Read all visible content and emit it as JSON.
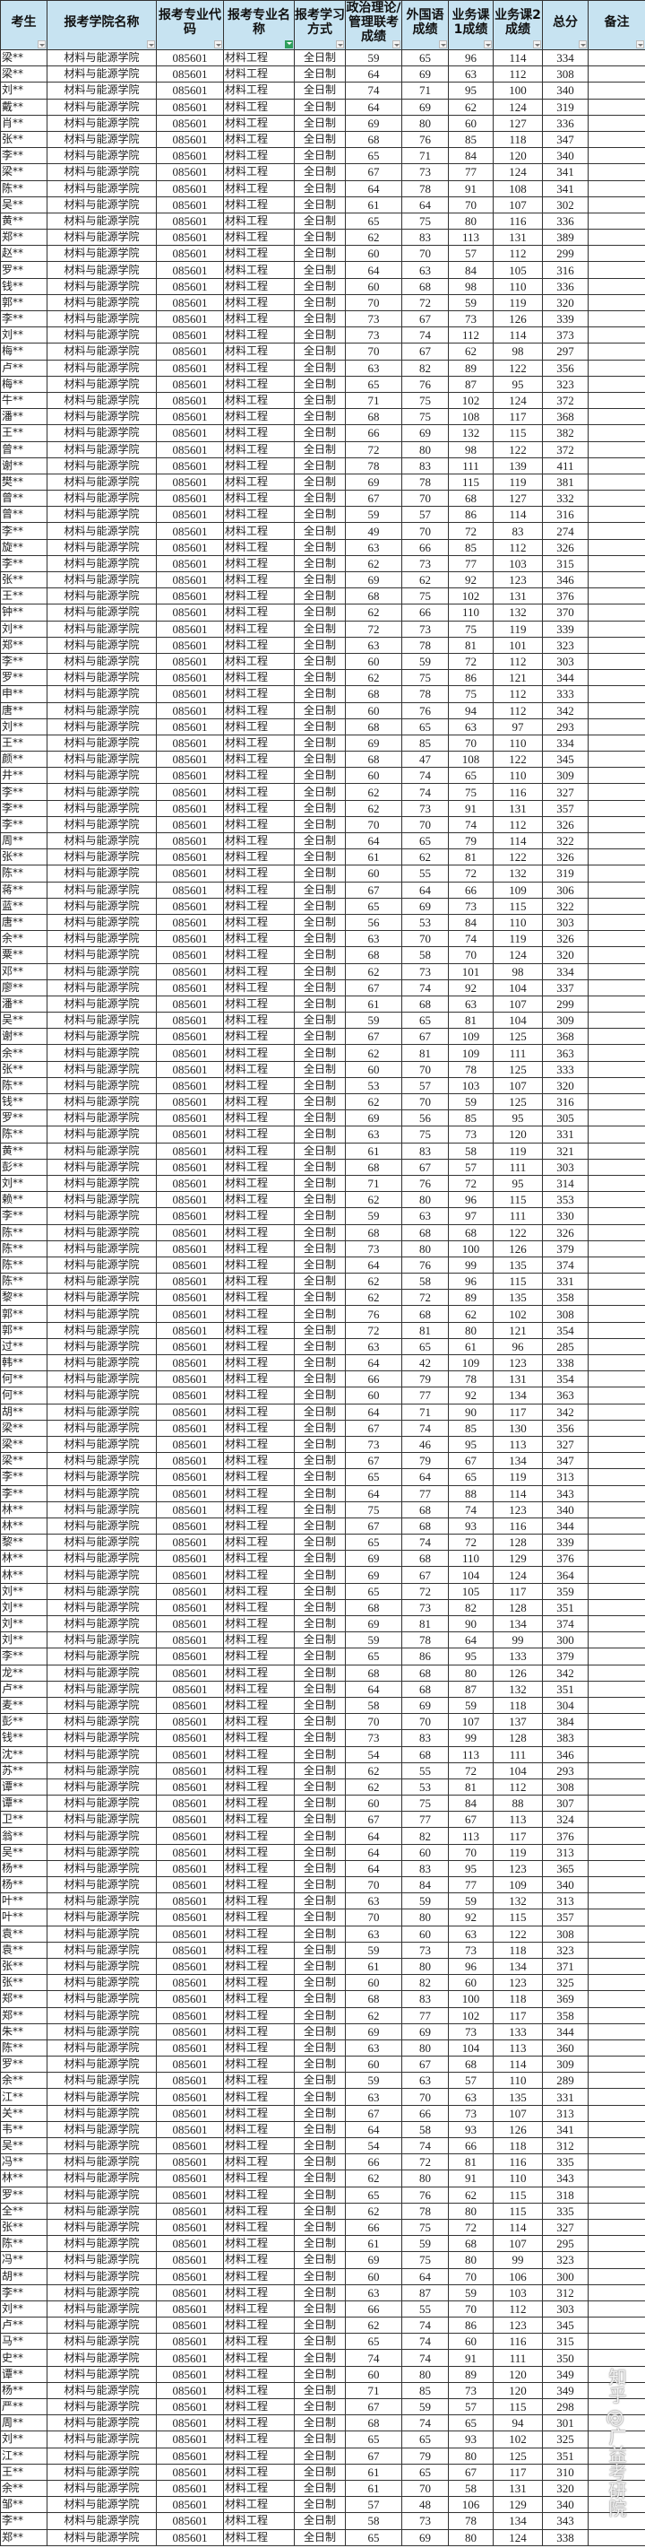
{
  "table": {
    "headers": [
      "考生",
      "报考学院名称",
      "报考专业代码",
      "报考专业名称",
      "报考学习方式",
      "政治理论/管理联考成绩",
      "外国语成绩",
      "业务课1成绩",
      "业务课2成绩",
      "总分",
      "备注"
    ],
    "filter_icons": {
      "default": "dropdown-arrow-icon",
      "active": "filter-icon",
      "active_column": 3
    },
    "common": {
      "school": "材料与能源学院",
      "code": "085601",
      "major": "材料工程",
      "mode": "全日制",
      "remark": ""
    },
    "rows": [
      [
        "梁**",
        59,
        65,
        96,
        114,
        334
      ],
      [
        "梁**",
        64,
        69,
        63,
        112,
        308
      ],
      [
        "刘**",
        74,
        71,
        95,
        100,
        340
      ],
      [
        "戴**",
        64,
        69,
        62,
        124,
        319
      ],
      [
        "肖**",
        69,
        80,
        60,
        127,
        336
      ],
      [
        "张**",
        68,
        76,
        85,
        118,
        347
      ],
      [
        "李**",
        65,
        71,
        84,
        120,
        340
      ],
      [
        "梁**",
        67,
        73,
        77,
        124,
        341
      ],
      [
        "陈**",
        64,
        78,
        91,
        108,
        341
      ],
      [
        "吴**",
        61,
        64,
        70,
        107,
        302
      ],
      [
        "黄**",
        65,
        75,
        80,
        116,
        336
      ],
      [
        "郑**",
        62,
        83,
        113,
        131,
        389
      ],
      [
        "赵**",
        60,
        70,
        57,
        112,
        299
      ],
      [
        "罗**",
        64,
        63,
        84,
        105,
        316
      ],
      [
        "钱**",
        60,
        68,
        98,
        110,
        336
      ],
      [
        "郭**",
        70,
        72,
        59,
        119,
        320
      ],
      [
        "李**",
        73,
        67,
        73,
        126,
        339
      ],
      [
        "刘**",
        73,
        74,
        112,
        114,
        373
      ],
      [
        "梅**",
        70,
        67,
        62,
        98,
        297
      ],
      [
        "卢**",
        63,
        82,
        89,
        122,
        356
      ],
      [
        "梅**",
        65,
        76,
        87,
        95,
        323
      ],
      [
        "牛**",
        71,
        75,
        102,
        124,
        372
      ],
      [
        "潘**",
        68,
        75,
        108,
        117,
        368
      ],
      [
        "王**",
        66,
        69,
        132,
        115,
        382
      ],
      [
        "曾**",
        72,
        80,
        98,
        122,
        372
      ],
      [
        "谢**",
        78,
        83,
        111,
        139,
        411
      ],
      [
        "樊**",
        69,
        78,
        115,
        119,
        381
      ],
      [
        "曾**",
        67,
        70,
        68,
        127,
        332
      ],
      [
        "曾**",
        59,
        57,
        86,
        114,
        316
      ],
      [
        "李**",
        49,
        70,
        72,
        83,
        274
      ],
      [
        "旋**",
        63,
        66,
        85,
        112,
        326
      ],
      [
        "李**",
        62,
        73,
        77,
        103,
        315
      ],
      [
        "张**",
        69,
        62,
        92,
        123,
        346
      ],
      [
        "王**",
        68,
        75,
        102,
        131,
        376
      ],
      [
        "钟**",
        62,
        66,
        110,
        132,
        370
      ],
      [
        "刘**",
        72,
        73,
        75,
        119,
        339
      ],
      [
        "郑**",
        63,
        78,
        81,
        101,
        323
      ],
      [
        "李**",
        60,
        59,
        72,
        112,
        303
      ],
      [
        "罗**",
        62,
        75,
        86,
        121,
        344
      ],
      [
        "申**",
        68,
        78,
        75,
        112,
        333
      ],
      [
        "唐**",
        60,
        76,
        94,
        112,
        342
      ],
      [
        "刘**",
        68,
        65,
        63,
        97,
        293
      ],
      [
        "王**",
        69,
        85,
        70,
        110,
        334
      ],
      [
        "颜**",
        68,
        47,
        108,
        122,
        345
      ],
      [
        "井**",
        60,
        74,
        65,
        110,
        309
      ],
      [
        "李**",
        62,
        74,
        75,
        116,
        327
      ],
      [
        "李**",
        62,
        73,
        91,
        131,
        357
      ],
      [
        "李**",
        70,
        70,
        74,
        112,
        326
      ],
      [
        "周**",
        64,
        65,
        79,
        114,
        322
      ],
      [
        "张**",
        61,
        62,
        81,
        122,
        326
      ],
      [
        "陈**",
        60,
        55,
        72,
        132,
        319
      ],
      [
        "蒋**",
        67,
        64,
        66,
        109,
        306
      ],
      [
        "蓝**",
        65,
        69,
        73,
        115,
        322
      ],
      [
        "唐**",
        56,
        53,
        84,
        110,
        303
      ],
      [
        "余**",
        63,
        70,
        74,
        119,
        326
      ],
      [
        "粟**",
        68,
        58,
        70,
        124,
        320
      ],
      [
        "邓**",
        62,
        73,
        101,
        98,
        334
      ],
      [
        "廖**",
        67,
        74,
        92,
        104,
        337
      ],
      [
        "潘**",
        61,
        68,
        63,
        107,
        299
      ],
      [
        "吴**",
        59,
        65,
        81,
        104,
        309
      ],
      [
        "谢**",
        67,
        67,
        109,
        125,
        368
      ],
      [
        "余**",
        62,
        81,
        109,
        111,
        363
      ],
      [
        "张**",
        60,
        70,
        78,
        125,
        333
      ],
      [
        "陈**",
        53,
        57,
        103,
        107,
        320
      ],
      [
        "钱**",
        62,
        70,
        59,
        125,
        316
      ],
      [
        "罗**",
        69,
        56,
        85,
        95,
        305
      ],
      [
        "陈**",
        63,
        75,
        73,
        120,
        331
      ],
      [
        "黄**",
        61,
        83,
        58,
        119,
        321
      ],
      [
        "彭**",
        68,
        67,
        57,
        111,
        303
      ],
      [
        "刘**",
        71,
        76,
        72,
        95,
        314
      ],
      [
        "赖**",
        62,
        80,
        96,
        115,
        353
      ],
      [
        "李**",
        59,
        63,
        97,
        111,
        330
      ],
      [
        "陈**",
        68,
        68,
        68,
        122,
        326
      ],
      [
        "陈**",
        73,
        80,
        100,
        126,
        379
      ],
      [
        "陈**",
        64,
        76,
        99,
        135,
        374
      ],
      [
        "陈**",
        62,
        58,
        96,
        115,
        331
      ],
      [
        "黎**",
        62,
        72,
        89,
        135,
        358
      ],
      [
        "郭**",
        76,
        68,
        62,
        102,
        308
      ],
      [
        "郭**",
        72,
        81,
        80,
        121,
        354
      ],
      [
        "过**",
        63,
        65,
        61,
        96,
        285
      ],
      [
        "韩**",
        64,
        42,
        109,
        123,
        338
      ],
      [
        "何**",
        66,
        79,
        78,
        131,
        354
      ],
      [
        "何**",
        60,
        77,
        92,
        134,
        363
      ],
      [
        "胡**",
        64,
        71,
        90,
        117,
        342
      ],
      [
        "梁**",
        67,
        74,
        85,
        130,
        356
      ],
      [
        "梁**",
        73,
        46,
        95,
        113,
        327
      ],
      [
        "梁**",
        67,
        79,
        67,
        134,
        347
      ],
      [
        "李**",
        65,
        64,
        65,
        119,
        313
      ],
      [
        "李**",
        64,
        77,
        88,
        114,
        343
      ],
      [
        "林**",
        75,
        68,
        74,
        123,
        340
      ],
      [
        "林**",
        67,
        68,
        93,
        116,
        344
      ],
      [
        "黎**",
        65,
        74,
        72,
        128,
        339
      ],
      [
        "林**",
        69,
        68,
        110,
        129,
        376
      ],
      [
        "林**",
        69,
        67,
        104,
        124,
        364
      ],
      [
        "刘**",
        65,
        72,
        105,
        117,
        359
      ],
      [
        "刘**",
        68,
        73,
        82,
        128,
        351
      ],
      [
        "刘**",
        69,
        81,
        90,
        134,
        374
      ],
      [
        "刘**",
        59,
        78,
        64,
        99,
        300
      ],
      [
        "李**",
        65,
        86,
        95,
        133,
        379
      ],
      [
        "龙**",
        68,
        68,
        80,
        126,
        342
      ],
      [
        "卢**",
        64,
        68,
        87,
        132,
        351
      ],
      [
        "麦**",
        58,
        69,
        59,
        118,
        304
      ],
      [
        "彭**",
        70,
        70,
        107,
        137,
        384
      ],
      [
        "钱**",
        73,
        83,
        99,
        128,
        383
      ],
      [
        "沈**",
        54,
        68,
        113,
        111,
        346
      ],
      [
        "苏**",
        62,
        55,
        72,
        104,
        293
      ],
      [
        "谭**",
        62,
        53,
        81,
        112,
        308
      ],
      [
        "谭**",
        60,
        75,
        84,
        88,
        307
      ],
      [
        "卫**",
        67,
        77,
        67,
        113,
        324
      ],
      [
        "翁**",
        64,
        82,
        113,
        117,
        376
      ],
      [
        "吴**",
        64,
        60,
        70,
        119,
        313
      ],
      [
        "杨**",
        64,
        83,
        95,
        123,
        365
      ],
      [
        "杨**",
        70,
        84,
        77,
        109,
        340
      ],
      [
        "叶**",
        63,
        59,
        59,
        132,
        313
      ],
      [
        "叶**",
        70,
        80,
        92,
        115,
        357
      ],
      [
        "袁**",
        63,
        60,
        63,
        122,
        308
      ],
      [
        "袁**",
        59,
        73,
        73,
        118,
        323
      ],
      [
        "张**",
        61,
        80,
        96,
        134,
        371
      ],
      [
        "张**",
        60,
        82,
        60,
        123,
        325
      ],
      [
        "郑**",
        68,
        83,
        100,
        118,
        369
      ],
      [
        "郑**",
        62,
        77,
        102,
        117,
        358
      ],
      [
        "朱**",
        69,
        69,
        73,
        133,
        344
      ],
      [
        "陈**",
        63,
        80,
        104,
        113,
        360
      ],
      [
        "罗**",
        60,
        67,
        68,
        114,
        309
      ],
      [
        "余**",
        59,
        63,
        57,
        110,
        289
      ],
      [
        "江**",
        63,
        70,
        63,
        135,
        331
      ],
      [
        "关**",
        67,
        66,
        73,
        107,
        313
      ],
      [
        "韦**",
        64,
        58,
        93,
        126,
        341
      ],
      [
        "吴**",
        54,
        74,
        66,
        118,
        312
      ],
      [
        "冯**",
        66,
        72,
        81,
        116,
        335
      ],
      [
        "林**",
        62,
        80,
        91,
        110,
        343
      ],
      [
        "罗**",
        65,
        76,
        62,
        115,
        318
      ],
      [
        "全**",
        62,
        78,
        80,
        115,
        335
      ],
      [
        "张**",
        66,
        75,
        72,
        114,
        327
      ],
      [
        "陈**",
        61,
        59,
        68,
        107,
        295
      ],
      [
        "冯**",
        69,
        75,
        80,
        99,
        323
      ],
      [
        "胡**",
        60,
        64,
        70,
        106,
        300
      ],
      [
        "李**",
        63,
        87,
        59,
        103,
        312
      ],
      [
        "刘**",
        66,
        55,
        70,
        112,
        303
      ],
      [
        "卢**",
        62,
        74,
        86,
        123,
        345
      ],
      [
        "马**",
        65,
        74,
        60,
        116,
        315
      ],
      [
        "史**",
        74,
        74,
        91,
        111,
        350
      ],
      [
        "谭**",
        60,
        80,
        89,
        120,
        349
      ],
      [
        "杨**",
        71,
        85,
        73,
        120,
        349
      ],
      [
        "严**",
        67,
        59,
        57,
        115,
        298
      ],
      [
        "周**",
        68,
        74,
        65,
        94,
        301
      ],
      [
        "刘**",
        65,
        65,
        93,
        102,
        325
      ],
      [
        "江**",
        67,
        79,
        80,
        125,
        351
      ],
      [
        "王**",
        61,
        65,
        67,
        117,
        310
      ],
      [
        "余**",
        61,
        70,
        58,
        131,
        320
      ],
      [
        "邹**",
        57,
        48,
        106,
        129,
        340
      ],
      [
        "李**",
        58,
        73,
        78,
        134,
        343
      ],
      [
        "郑**",
        65,
        69,
        80,
        124,
        338
      ]
    ]
  },
  "watermark": "知乎 @广益考研院"
}
